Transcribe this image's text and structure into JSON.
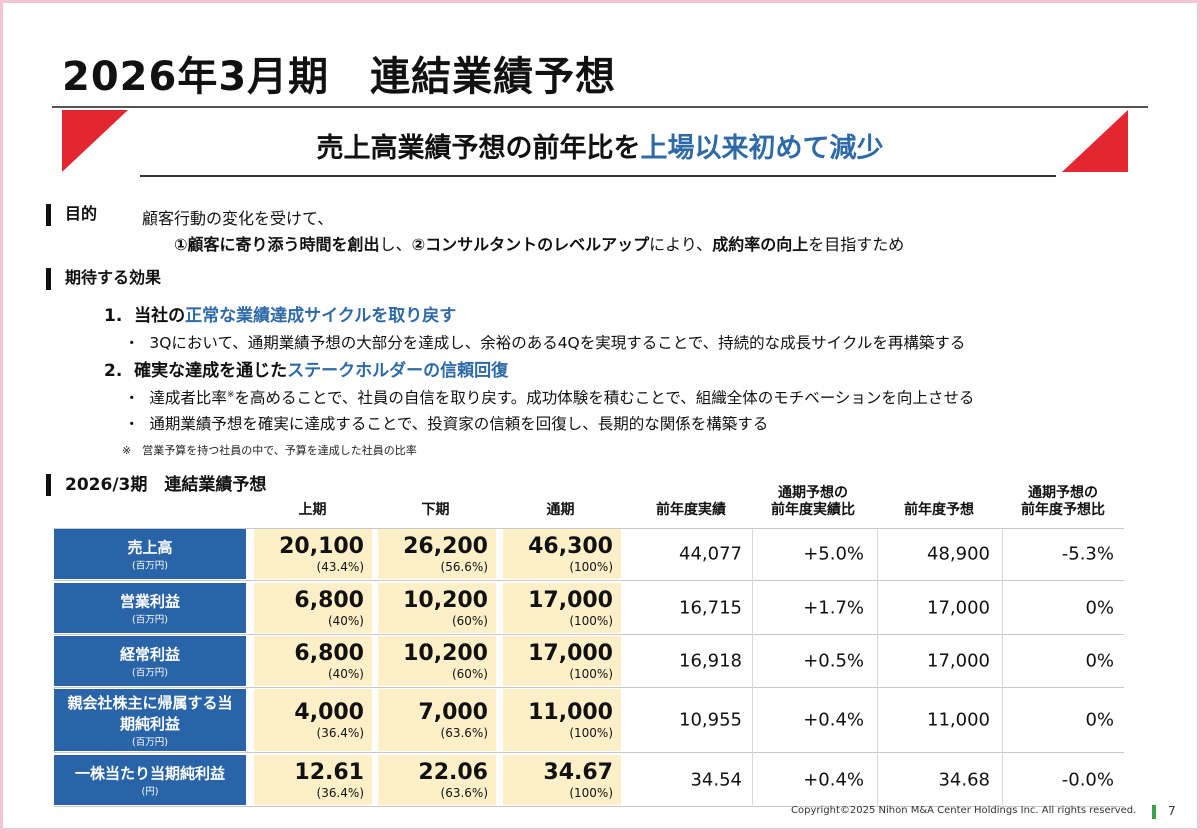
{
  "title": "2026年3月期　連結業績予想",
  "headline": {
    "part1": "売上高業績予想の前年比を",
    "part2": "上場以来初めて減少"
  },
  "purpose": {
    "heading": "目的",
    "line1": "顧客行動の変化を受けて、",
    "line2_a": "①顧客に寄り添う時間を創出",
    "line2_b": "し、",
    "line2_c": "②コンサルタントのレベルアップ",
    "line2_d": "により、",
    "line2_e": "成約率の向上",
    "line2_f": "を目指すため"
  },
  "effects": {
    "heading": "期待する効果",
    "item1": {
      "num": "1.",
      "a": "当社の",
      "b": "正常な業績達成サイクルを取り戻す"
    },
    "item1_bullets": [
      "3Qにおいて、通期業績予想の大部分を達成し、余裕のある4Qを実現することで、持続的な成長サイクルを再構築する"
    ],
    "item2": {
      "num": "2.",
      "a": "確実な達成を通じた",
      "b": "ステークホルダーの信頼回復"
    },
    "item2_bullet1_a": "達成者比率",
    "item2_bullet1_sup": "※",
    "item2_bullet1_b": "を高めることで、社員の自信を取り戻す。成功体験を積むことで、組織全体のモチベーションを向上させる",
    "item2_bullet2": "通期業績予想を確実に達成することで、投資家の信頼を回復し、長期的な関係を構築する",
    "bullet_mark": "・",
    "note": "※　営業予算を持つ社員の中で、予算を達成した社員の比率"
  },
  "table": {
    "title": "2026/3期　連結業績予想",
    "headers": {
      "h1": "上期",
      "h2": "下期",
      "h3": "通期",
      "h4": "前年度実績",
      "h5a": "通期予想の",
      "h5b": "前年度実績比",
      "h6": "前年度予想",
      "h7a": "通期予想の",
      "h7b": "前年度予想比"
    },
    "rows": [
      {
        "label": "売上高",
        "label2": "",
        "unit": "(百万円)",
        "h1": "20,100",
        "h1p": "(43.4%)",
        "h2": "26,200",
        "h2p": "(56.6%)",
        "fy": "46,300",
        "fyp": "(100%)",
        "prev": "44,077",
        "vs_prev": "+5.0%",
        "prev_fc": "48,900",
        "vs_prev_fc": "-5.3%"
      },
      {
        "label": "営業利益",
        "label2": "",
        "unit": "(百万円)",
        "h1": "6,800",
        "h1p": "(40%)",
        "h2": "10,200",
        "h2p": "(60%)",
        "fy": "17,000",
        "fyp": "(100%)",
        "prev": "16,715",
        "vs_prev": "+1.7%",
        "prev_fc": "17,000",
        "vs_prev_fc": "0%"
      },
      {
        "label": "経常利益",
        "label2": "",
        "unit": "(百万円)",
        "h1": "6,800",
        "h1p": "(40%)",
        "h2": "10,200",
        "h2p": "(60%)",
        "fy": "17,000",
        "fyp": "(100%)",
        "prev": "16,918",
        "vs_prev": "+0.5%",
        "prev_fc": "17,000",
        "vs_prev_fc": "0%"
      },
      {
        "label": "親会社株主に帰属する当",
        "label2": "期純利益",
        "unit": "(百万円)",
        "h1": "4,000",
        "h1p": "(36.4%)",
        "h2": "7,000",
        "h2p": "(63.6%)",
        "fy": "11,000",
        "fyp": "(100%)",
        "prev": "10,955",
        "vs_prev": "+0.4%",
        "prev_fc": "11,000",
        "vs_prev_fc": "0%"
      },
      {
        "label": "一株当たり当期純利益",
        "label2": "",
        "unit": "(円)",
        "h1": "12.61",
        "h1p": "(36.4%)",
        "h2": "22.06",
        "h2p": "(63.6%)",
        "fy": "34.67",
        "fyp": "(100%)",
        "prev": "34.54",
        "vs_prev": "+0.4%",
        "prev_fc": "34.68",
        "vs_prev_fc": "-0.0%"
      }
    ]
  },
  "footer": {
    "copyright": "Copyright©2025 Nihon M&A Center Holdings Inc. All rights reserved.",
    "page": "7"
  },
  "colors": {
    "accent_red": "#e3262f",
    "header_blue": "#2a64a8",
    "highlight_blue": "#2e6aa8",
    "yellow_cell": "#fdf0c8",
    "border_pink": "#f4c6d3",
    "page_marker_green": "#3aa34a"
  }
}
